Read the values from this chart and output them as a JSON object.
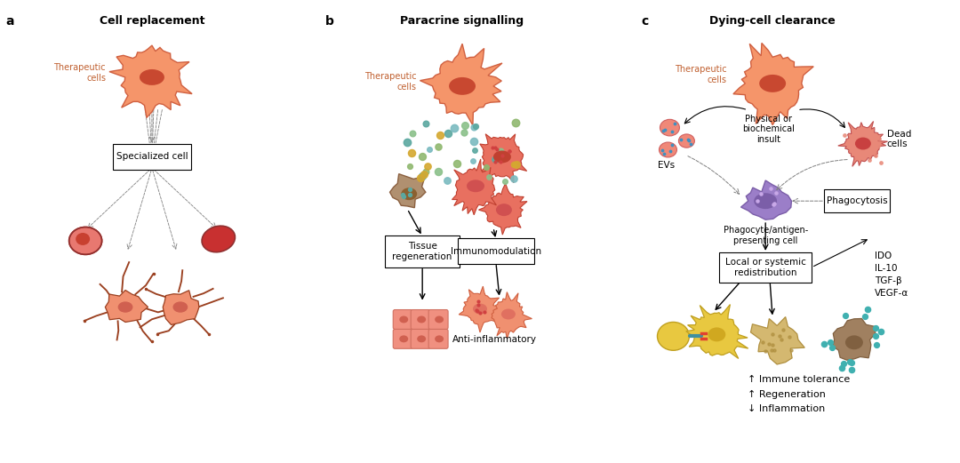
{
  "bg_color": "#ffffff",
  "title_a": "Cell replacement",
  "title_b": "Paracrine signalling",
  "title_c": "Dying-cell clearance",
  "label_a": "a",
  "label_b": "b",
  "label_c": "c",
  "panel_a": {
    "therapeutic_cells_label": "Therapeutic\ncells",
    "specialized_cell_label": "Specialized cell",
    "cell_color_main": "#F08060",
    "cell_color_nucleus": "#C04030",
    "cell_color_rbc": "#C03020",
    "cell_color_neuron": "#C06040",
    "cell_outline": "#C05030"
  },
  "panel_b": {
    "therapeutic_cells_label": "Therapeutic\ncells",
    "tissue_regen_label": "Tissue\nregeneration",
    "immunomod_label": "Immunomodulation",
    "anti_inflam_label": "Anti-inflammatory",
    "cell_color_main": "#F08060",
    "dot_colors": [
      "#5BA8A0",
      "#D4A830",
      "#8BC08A",
      "#7BBBC0"
    ],
    "macrophage_color": "#A08060",
    "tissue_color": "#F0A090"
  },
  "panel_c": {
    "therapeutic_cells_label": "Therapeutic\ncells",
    "phys_biochem_label": "Physical or\nbiochemical\ninsult",
    "dead_cells_label": "Dead\ncells",
    "evs_label": "EVs",
    "phagocyte_label": "Phagocyte/antigen-\npresenting cell",
    "phagocytosis_label": "Phagocytosis",
    "local_systemic_label": "Local or systemic\nredistribution",
    "ido_label": "IDO\nIL-10\nTGF-β\nVEGF-α",
    "outcomes_label": "↑ Immune tolerance\n↑ Regeneration\n↓ Inflammation",
    "phagocyte_color": "#9B7EC8",
    "cell_color_main": "#F08060",
    "ev_color": "#F07070",
    "dead_cell_color": "#E08070",
    "yellow_cell_color": "#E8C840",
    "beige_cell_color": "#D4B870",
    "brown_cell_color": "#A08060",
    "teal_dot_color": "#40B0B0"
  }
}
